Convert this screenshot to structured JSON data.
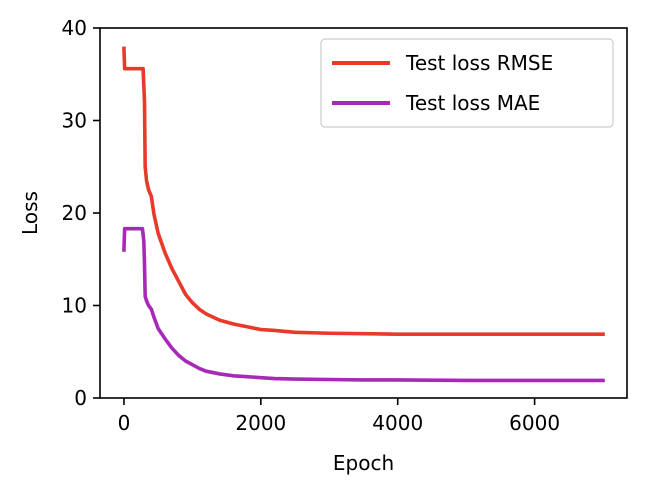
{
  "chart_data": {
    "type": "line",
    "title": "",
    "xlabel": "Epoch",
    "ylabel": "Loss",
    "xlim": [
      -350,
      7350
    ],
    "ylim": [
      0,
      40
    ],
    "xticks": [
      0,
      2000,
      4000,
      6000
    ],
    "xtick_labels": [
      "0",
      "2000",
      "4000",
      "6000"
    ],
    "yticks": [
      0,
      10,
      20,
      30,
      40
    ],
    "ytick_labels": [
      "0",
      "10",
      "20",
      "30",
      "40"
    ],
    "grid": false,
    "legend_position": "upper right",
    "series": [
      {
        "name": "Test loss RMSE",
        "color": "#e8392b",
        "x": [
          0,
          10,
          20,
          50,
          100,
          150,
          200,
          250,
          280,
          300,
          310,
          330,
          360,
          400,
          440,
          500,
          600,
          700,
          800,
          900,
          1000,
          1100,
          1200,
          1400,
          1600,
          1800,
          2000,
          2200,
          2500,
          3000,
          3500,
          4000,
          5000,
          6000,
          7000
        ],
        "y": [
          37.8,
          35.6,
          35.6,
          35.6,
          35.6,
          35.6,
          35.6,
          35.6,
          35.6,
          32.0,
          25.0,
          23.5,
          22.5,
          21.8,
          19.8,
          17.8,
          15.7,
          14.0,
          12.6,
          11.2,
          10.3,
          9.6,
          9.1,
          8.4,
          8.0,
          7.7,
          7.4,
          7.3,
          7.1,
          7.0,
          6.95,
          6.9,
          6.9,
          6.9,
          6.9
        ]
      },
      {
        "name": "Test loss MAE",
        "color": "#a62ab5",
        "x": [
          0,
          10,
          20,
          50,
          100,
          150,
          200,
          250,
          270,
          290,
          300,
          310,
          330,
          360,
          400,
          440,
          500,
          600,
          700,
          800,
          900,
          1000,
          1100,
          1200,
          1400,
          1600,
          1800,
          2000,
          2200,
          2500,
          3000,
          3500,
          4000,
          5000,
          6000,
          7000
        ],
        "y": [
          16.0,
          18.3,
          18.3,
          18.3,
          18.3,
          18.3,
          18.3,
          18.3,
          18.3,
          17.0,
          14.5,
          11.0,
          10.5,
          10.0,
          9.6,
          8.7,
          7.5,
          6.4,
          5.4,
          4.6,
          4.0,
          3.6,
          3.2,
          2.9,
          2.6,
          2.4,
          2.3,
          2.2,
          2.1,
          2.05,
          2.0,
          1.95,
          1.95,
          1.9,
          1.9,
          1.9
        ]
      }
    ]
  }
}
